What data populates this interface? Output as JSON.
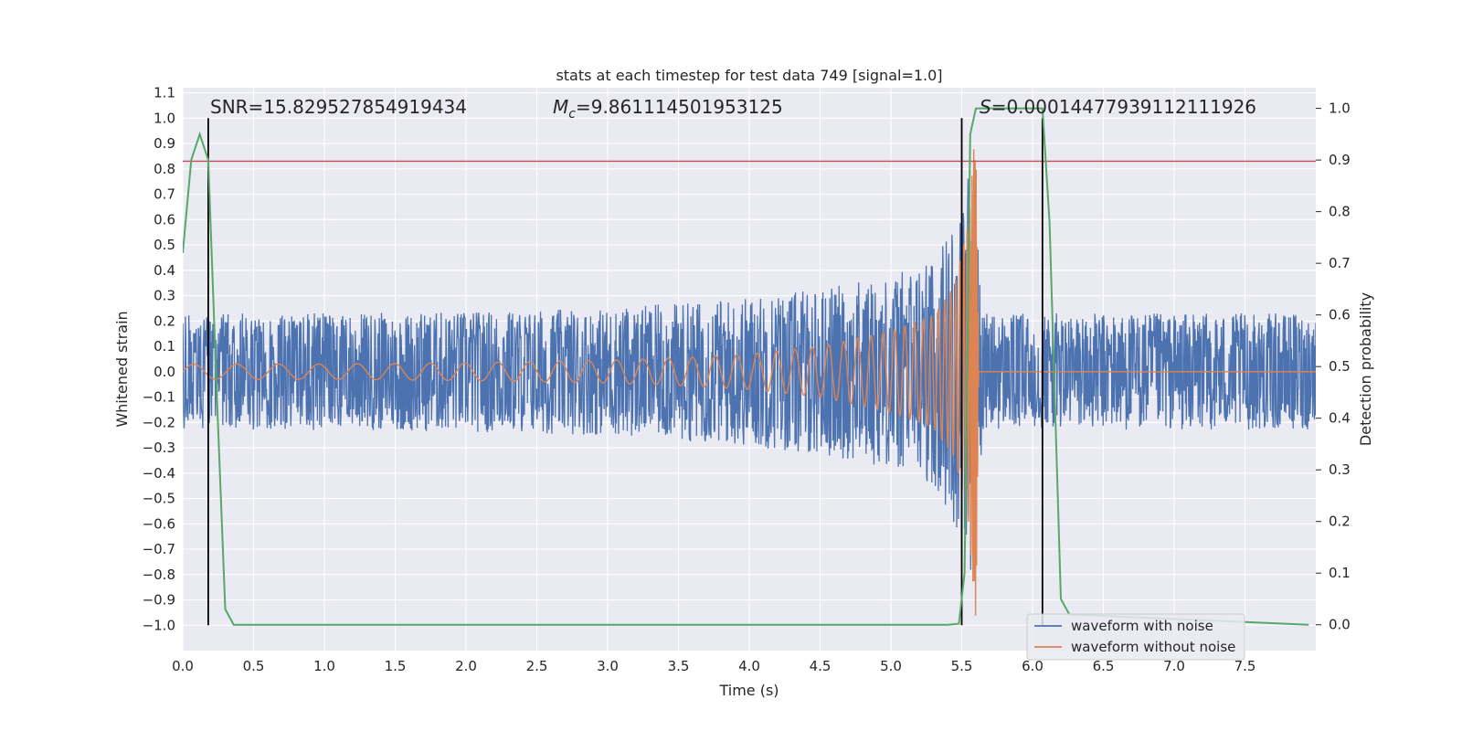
{
  "chart_data": {
    "type": "line",
    "title": "stats at each timestep for test data 749 [signal=1.0]",
    "xlabel": "Time (s)",
    "ylabel_left": "Whitened strain",
    "ylabel_right": "Detection probability",
    "xlim": [
      0.0,
      8.0
    ],
    "ylim_left": [
      -1.1,
      1.12
    ],
    "ylim_right": [
      -0.05,
      1.04
    ],
    "xticks": [
      "0.0",
      "0.5",
      "1.0",
      "1.5",
      "2.0",
      "2.5",
      "3.0",
      "3.5",
      "4.0",
      "4.5",
      "5.0",
      "5.5",
      "6.0",
      "6.5",
      "7.0",
      "7.5"
    ],
    "yticks_left": [
      "1.1",
      "1.0",
      "0.9",
      "0.8",
      "0.7",
      "0.6",
      "0.5",
      "0.4",
      "0.3",
      "0.2",
      "0.1",
      "0.0",
      "−0.1",
      "−0.2",
      "−0.3",
      "−0.4",
      "−0.5",
      "−0.6",
      "−0.7",
      "−0.8",
      "−0.9",
      "−1.0"
    ],
    "yticks_right": [
      "1.0",
      "0.9",
      "0.8",
      "0.7",
      "0.6",
      "0.5",
      "0.4",
      "0.3",
      "0.2",
      "0.1",
      "0.0"
    ],
    "grid": true,
    "legend_position": "lower-right",
    "annotations": {
      "snr_prefix": "SNR=",
      "snr_value": "15.829527854919434",
      "mc_symbol": "M",
      "mc_subscript": "c",
      "mc_value": "=9.861114501953125",
      "s_symbol": "S",
      "s_value": "=0.00014477939112111926"
    },
    "vlines_x": [
      0.18,
      5.5,
      6.07
    ],
    "vline_y_range": [
      -1.0,
      1.0
    ],
    "threshold_y_left": 0.83,
    "colors": {
      "noise": "#4c72b0",
      "clean": "#dd8452",
      "probability": "#55a868",
      "threshold": "#c44e52",
      "vline": "#000000",
      "background": "#eaeaf2",
      "grid": "#ffffff"
    },
    "series": [
      {
        "name": "waveform with noise",
        "axis": "left",
        "color": "#4c72b0",
        "envelope": {
          "x": [
            0.0,
            1.0,
            2.0,
            3.0,
            3.5,
            4.0,
            4.5,
            5.0,
            5.3,
            5.45,
            5.55,
            5.62,
            5.65,
            8.0
          ],
          "amplitude": [
            0.23,
            0.23,
            0.24,
            0.25,
            0.27,
            0.3,
            0.33,
            0.38,
            0.45,
            0.6,
            0.85,
            0.5,
            0.23,
            0.23
          ]
        }
      },
      {
        "name": "waveform without noise",
        "axis": "left",
        "color": "#dd8452",
        "description_points": {
          "x": [
            0.0,
            1.0,
            2.0,
            3.0,
            3.5,
            4.0,
            4.5,
            5.0,
            5.3,
            5.45,
            5.55,
            5.6,
            5.62
          ],
          "amplitude": [
            0.03,
            0.03,
            0.035,
            0.045,
            0.055,
            0.07,
            0.1,
            0.16,
            0.22,
            0.34,
            0.6,
            1.0,
            0.0
          ]
        }
      },
      {
        "name": "detection probability",
        "axis": "right",
        "color": "#55a868",
        "x": [
          0.0,
          0.06,
          0.12,
          0.18,
          0.24,
          0.3,
          0.36,
          0.42,
          5.4,
          5.48,
          5.52,
          5.56,
          5.6,
          5.66,
          6.07,
          6.12,
          6.2,
          6.26,
          7.95
        ],
        "y": [
          0.72,
          0.9,
          0.95,
          0.9,
          0.45,
          0.03,
          0.0,
          0.0,
          0.0,
          0.002,
          0.1,
          0.95,
          1.0,
          1.0,
          1.0,
          0.78,
          0.05,
          0.02,
          0.0
        ]
      }
    ]
  }
}
